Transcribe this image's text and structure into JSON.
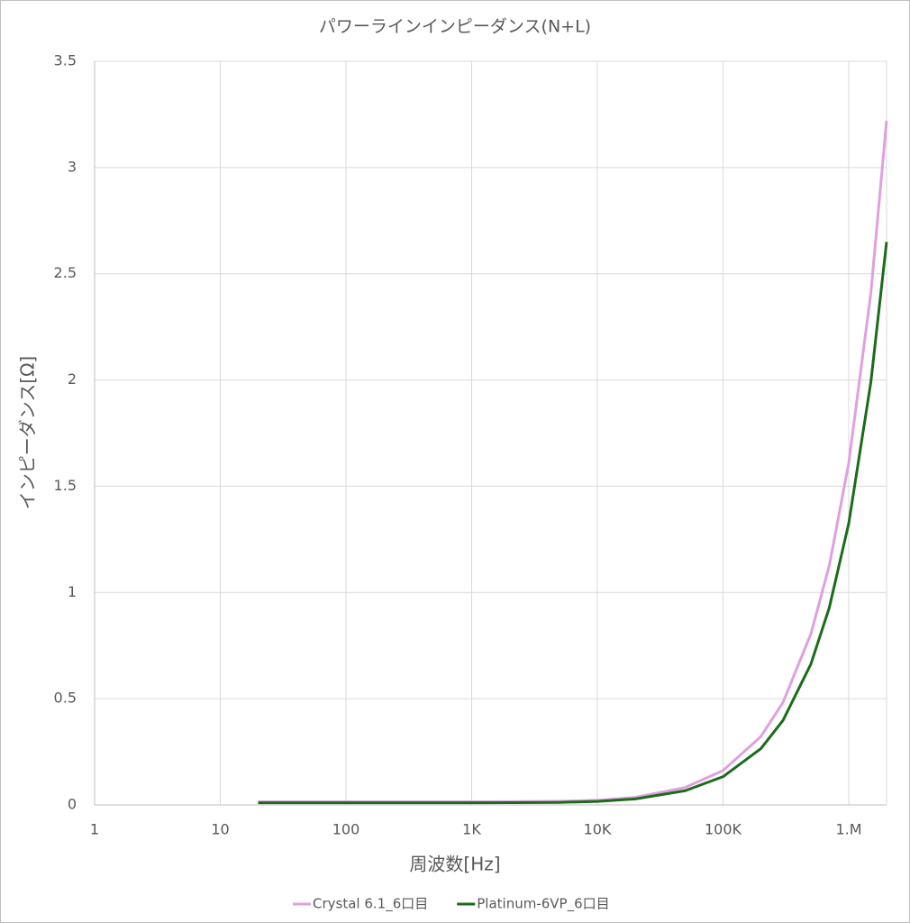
{
  "chart_data": {
    "type": "line",
    "title": "パワーラインインピーダンス(N+L)",
    "x_label": "周波数[Hz]",
    "y_label": "インピーダンス[Ω]",
    "log_x": true,
    "grid": true,
    "legend": "bottom",
    "x": [
      20,
      50,
      100,
      200,
      500,
      1000,
      2000,
      5000,
      10000,
      20000,
      50000,
      100000,
      200000,
      300000,
      500000,
      700000,
      1000000,
      1500000,
      2000000
    ],
    "series": [
      {
        "name": "Crystal 6.1_6口目",
        "color": "#e0a0e0",
        "values": [
          0.015,
          0.015,
          0.015,
          0.015,
          0.015,
          0.015,
          0.0153,
          0.017,
          0.022,
          0.0355,
          0.082,
          0.162,
          0.322,
          0.483,
          0.805,
          1.126,
          1.609,
          2.41,
          3.22
        ]
      },
      {
        "name": "Platinum-6VP_6口目",
        "color": "#1a6b1a",
        "values": [
          0.01,
          0.01,
          0.01,
          0.01,
          0.01,
          0.01,
          0.0104,
          0.0119,
          0.0166,
          0.0281,
          0.0668,
          0.133,
          0.265,
          0.398,
          0.663,
          0.928,
          1.325,
          1.99,
          2.65
        ]
      }
    ],
    "xlim": [
      1,
      2000000
    ],
    "xticks": [
      1,
      10,
      100,
      {
        "value": 1000,
        "label": "1K"
      },
      {
        "value": 10000,
        "label": "10K"
      },
      {
        "value": 100000,
        "label": "100K"
      },
      {
        "value": 1000000,
        "label": "1.M"
      }
    ],
    "ylim": [
      0,
      3.5
    ],
    "yticks": [
      0,
      0.5,
      1,
      1.5,
      2,
      2.5,
      3,
      3.5
    ]
  }
}
